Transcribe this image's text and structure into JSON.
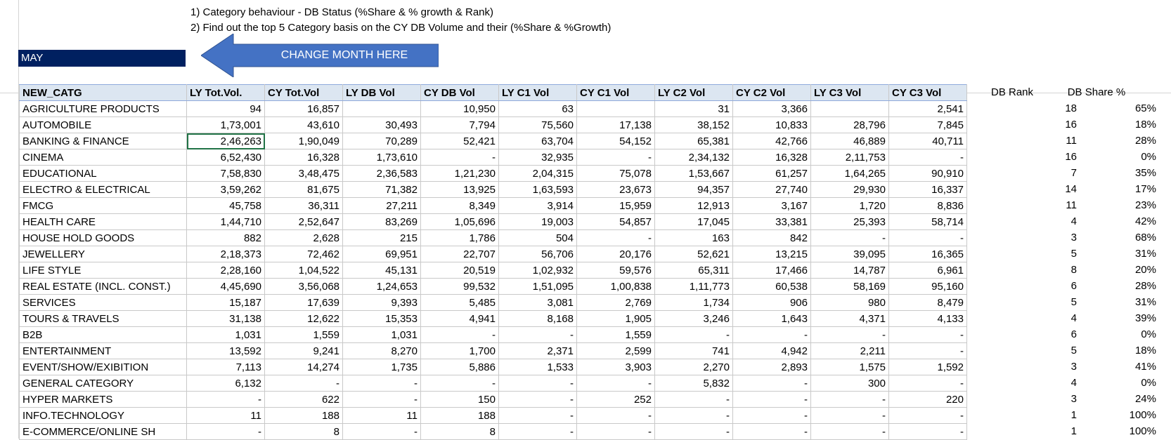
{
  "notes": {
    "line1": "1) Category behaviour - DB Status (%Share & % growth & Rank)",
    "line2": "2) Find out the top 5 Category basis on the CY DB Volume and their  (%Share & %Growth)"
  },
  "month": "MAY",
  "arrow_label": "CHANGE MONTH HERE",
  "colors": {
    "month_bg": "#002060",
    "arrow_fill": "#4472c4",
    "header_bg": "#dce6f1"
  },
  "table": {
    "headers": [
      "NEW_CATG",
      "LY Tot.Vol.",
      "CY Tot.Vol",
      "LY DB Vol",
      "CY DB Vol",
      "LY C1 Vol",
      "CY C1 Vol",
      "LY C2 Vol",
      "CY C2 Vol",
      "LY C3 Vol",
      "CY C3 Vol"
    ],
    "rows": [
      [
        "AGRICULTURE PRODUCTS",
        "94",
        "16,857",
        "",
        "10,950",
        "63",
        "",
        "31",
        "3,366",
        "",
        "2,541"
      ],
      [
        "AUTOMOBILE",
        "1,73,001",
        "43,610",
        "30,493",
        "7,794",
        "75,560",
        "17,138",
        "38,152",
        "10,833",
        "28,796",
        "7,845"
      ],
      [
        "BANKING & FINANCE",
        "2,46,263",
        "1,90,049",
        "70,289",
        "52,421",
        "63,704",
        "54,152",
        "65,381",
        "42,766",
        "46,889",
        "40,711"
      ],
      [
        "CINEMA",
        "6,52,430",
        "16,328",
        "1,73,610",
        "-",
        "32,935",
        "-",
        "2,34,132",
        "16,328",
        "2,11,753",
        "-"
      ],
      [
        "EDUCATIONAL",
        "7,58,830",
        "3,48,475",
        "2,36,583",
        "1,21,230",
        "2,04,315",
        "75,078",
        "1,53,667",
        "61,257",
        "1,64,265",
        "90,910"
      ],
      [
        "ELECTRO & ELECTRICAL",
        "3,59,262",
        "81,675",
        "71,382",
        "13,925",
        "1,63,593",
        "23,673",
        "94,357",
        "27,740",
        "29,930",
        "16,337"
      ],
      [
        "FMCG",
        "45,758",
        "36,311",
        "27,211",
        "8,349",
        "3,914",
        "15,959",
        "12,913",
        "3,167",
        "1,720",
        "8,836"
      ],
      [
        "HEALTH CARE",
        "1,44,710",
        "2,52,647",
        "83,269",
        "1,05,696",
        "19,003",
        "54,857",
        "17,045",
        "33,381",
        "25,393",
        "58,714"
      ],
      [
        "HOUSE HOLD GOODS",
        "882",
        "2,628",
        "215",
        "1,786",
        "504",
        "-",
        "163",
        "842",
        "-",
        "-"
      ],
      [
        "JEWELLERY",
        "2,18,373",
        "72,462",
        "69,951",
        "22,707",
        "56,706",
        "20,176",
        "52,621",
        "13,215",
        "39,095",
        "16,365"
      ],
      [
        "LIFE STYLE",
        "2,28,160",
        "1,04,522",
        "45,131",
        "20,519",
        "1,02,932",
        "59,576",
        "65,311",
        "17,466",
        "14,787",
        "6,961"
      ],
      [
        "REAL ESTATE (INCL. CONST.)",
        "4,45,690",
        "3,56,068",
        "1,24,653",
        "99,532",
        "1,51,095",
        "1,00,838",
        "1,11,773",
        "60,538",
        "58,169",
        "95,160"
      ],
      [
        "SERVICES",
        "15,187",
        "17,639",
        "9,393",
        "5,485",
        "3,081",
        "2,769",
        "1,734",
        "906",
        "980",
        "8,479"
      ],
      [
        "TOURS & TRAVELS",
        "31,138",
        "12,622",
        "15,353",
        "4,941",
        "8,168",
        "1,905",
        "3,246",
        "1,643",
        "4,371",
        "4,133"
      ],
      [
        "B2B",
        "1,031",
        "1,559",
        "1,031",
        "-",
        "-",
        "1,559",
        "-",
        "-",
        "-",
        "-"
      ],
      [
        "ENTERTAINMENT",
        "13,592",
        "9,241",
        "8,270",
        "1,700",
        "2,371",
        "2,599",
        "741",
        "4,942",
        "2,211",
        "-"
      ],
      [
        "EVENT/SHOW/EXIBITION",
        "7,113",
        "14,274",
        "1,735",
        "5,886",
        "1,533",
        "3,903",
        "2,270",
        "2,893",
        "1,575",
        "1,592"
      ],
      [
        "GENERAL CATEGORY",
        "6,132",
        "-",
        "-",
        "-",
        "-",
        "-",
        "5,832",
        "-",
        "300",
        "-"
      ],
      [
        "HYPER MARKETS",
        "-",
        "622",
        "-",
        "150",
        "-",
        "252",
        "-",
        "-",
        "-",
        "220"
      ],
      [
        "INFO.TECHNOLOGY",
        "11",
        "188",
        "11",
        "188",
        "-",
        "-",
        "-",
        "-",
        "-",
        "-"
      ],
      [
        "E-COMMERCE/ONLINE SH",
        "-",
        "8",
        "-",
        "8",
        "-",
        "-",
        "-",
        "-",
        "-",
        "-"
      ]
    ]
  },
  "side": {
    "headers": [
      "DB Rank",
      "DB Share %"
    ],
    "rows": [
      [
        "18",
        "65%"
      ],
      [
        "16",
        "18%"
      ],
      [
        "11",
        "28%"
      ],
      [
        "16",
        "0%"
      ],
      [
        "7",
        "35%"
      ],
      [
        "14",
        "17%"
      ],
      [
        "11",
        "23%"
      ],
      [
        "4",
        "42%"
      ],
      [
        "3",
        "68%"
      ],
      [
        "5",
        "31%"
      ],
      [
        "8",
        "20%"
      ],
      [
        "6",
        "28%"
      ],
      [
        "5",
        "31%"
      ],
      [
        "4",
        "39%"
      ],
      [
        "6",
        "0%"
      ],
      [
        "5",
        "18%"
      ],
      [
        "3",
        "41%"
      ],
      [
        "4",
        "0%"
      ],
      [
        "3",
        "24%"
      ],
      [
        "1",
        "100%"
      ],
      [
        "1",
        "100%"
      ]
    ]
  }
}
